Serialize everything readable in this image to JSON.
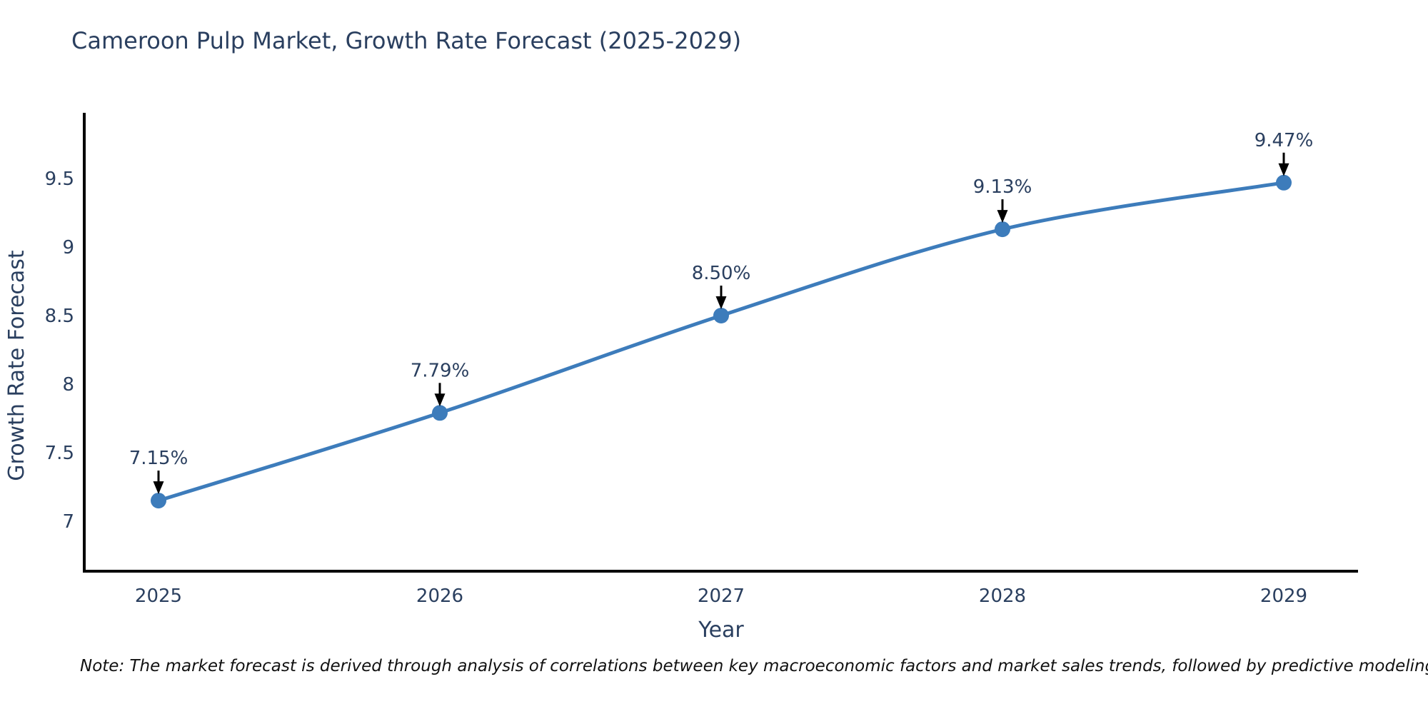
{
  "title": "Cameroon Pulp Market, Growth Rate Forecast (2025-2029)",
  "note": "Note: The market forecast is derived through analysis of correlations between key macroeconomic factors and market sales trends, followed by predictive modeling to project future sales",
  "chart_data": {
    "type": "line",
    "title": "Cameroon Pulp Market, Growth Rate Forecast (2025-2029)",
    "xlabel": "Year",
    "ylabel": "Growth Rate Forecast",
    "categories": [
      "2025",
      "2026",
      "2027",
      "2028",
      "2029"
    ],
    "series": [
      {
        "name": "Growth Rate Forecast",
        "values": [
          7.15,
          7.79,
          8.5,
          9.13,
          9.47
        ],
        "point_labels": [
          "7.15%",
          "7.79%",
          "8.50%",
          "9.13%",
          "9.47%"
        ]
      }
    ],
    "y_ticks": [
      7,
      7.5,
      8,
      8.5,
      9,
      9.5
    ],
    "ylim": [
      6.635,
      9.969
    ],
    "grid": false,
    "legend_position": "none",
    "annotation_style": "down-arrow",
    "colors": {
      "line": "#3d7cbb",
      "marker": "#3d7cbb",
      "axis": "#000000",
      "text": "#2a3f5f",
      "arrow": "#000000"
    }
  }
}
